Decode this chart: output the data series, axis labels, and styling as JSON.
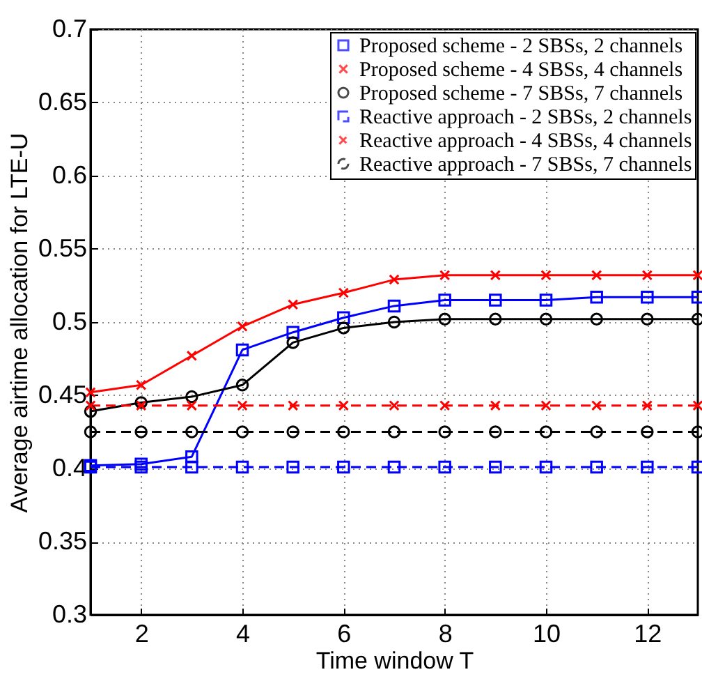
{
  "chart_data": {
    "type": "line",
    "xlabel": "Time window T",
    "ylabel": "Average airtime allocation for LTE-U",
    "x": [
      1,
      2,
      3,
      4,
      5,
      6,
      7,
      8,
      9,
      10,
      11,
      12,
      13
    ],
    "xlim": [
      1,
      13
    ],
    "xticks": [
      2,
      4,
      6,
      8,
      10,
      12
    ],
    "ylim": [
      0.3,
      0.7
    ],
    "yticks": [
      0.3,
      0.35,
      0.4,
      0.45,
      0.5,
      0.55,
      0.6,
      0.65,
      0.7
    ],
    "grid": true,
    "legend": "top right",
    "series": [
      {
        "name": "Proposed scheme - 2 SBSs, 2 channels",
        "color": "#0000ff",
        "marker": "square",
        "line_style": "solid",
        "values": [
          0.402,
          0.403,
          0.408,
          0.481,
          0.493,
          0.503,
          0.511,
          0.515,
          0.515,
          0.515,
          0.517,
          0.517,
          0.517
        ]
      },
      {
        "name": "Proposed scheme - 4 SBSs, 4 channels",
        "color": "#ff0000",
        "marker": "cross",
        "line_style": "solid",
        "values": [
          0.452,
          0.457,
          0.477,
          0.497,
          0.512,
          0.52,
          0.529,
          0.532,
          0.532,
          0.532,
          0.532,
          0.532,
          0.532
        ]
      },
      {
        "name": "Proposed scheme - 7 SBSs, 7 channels",
        "color": "#000000",
        "marker": "circle",
        "line_style": "solid",
        "values": [
          0.439,
          0.445,
          0.449,
          0.457,
          0.486,
          0.496,
          0.5,
          0.502,
          0.502,
          0.502,
          0.502,
          0.502,
          0.502
        ]
      },
      {
        "name": "Reactive approach - 2 SBSs, 2 channels",
        "color": "#0000ff",
        "marker": "square",
        "line_style": "dashed",
        "values": [
          0.401,
          0.401,
          0.401,
          0.401,
          0.401,
          0.401,
          0.401,
          0.401,
          0.401,
          0.401,
          0.401,
          0.401,
          0.401
        ]
      },
      {
        "name": "Reactive approach - 4 SBSs, 4 channels",
        "color": "#ff0000",
        "marker": "cross",
        "line_style": "dashed",
        "values": [
          0.443,
          0.443,
          0.443,
          0.443,
          0.443,
          0.443,
          0.443,
          0.443,
          0.443,
          0.443,
          0.443,
          0.443,
          0.443
        ]
      },
      {
        "name": "Reactive approach - 7 SBSs, 7 channels",
        "color": "#000000",
        "marker": "circle",
        "line_style": "dashed",
        "values": [
          0.425,
          0.425,
          0.425,
          0.425,
          0.425,
          0.425,
          0.425,
          0.425,
          0.425,
          0.425,
          0.425,
          0.425,
          0.425
        ]
      }
    ]
  }
}
